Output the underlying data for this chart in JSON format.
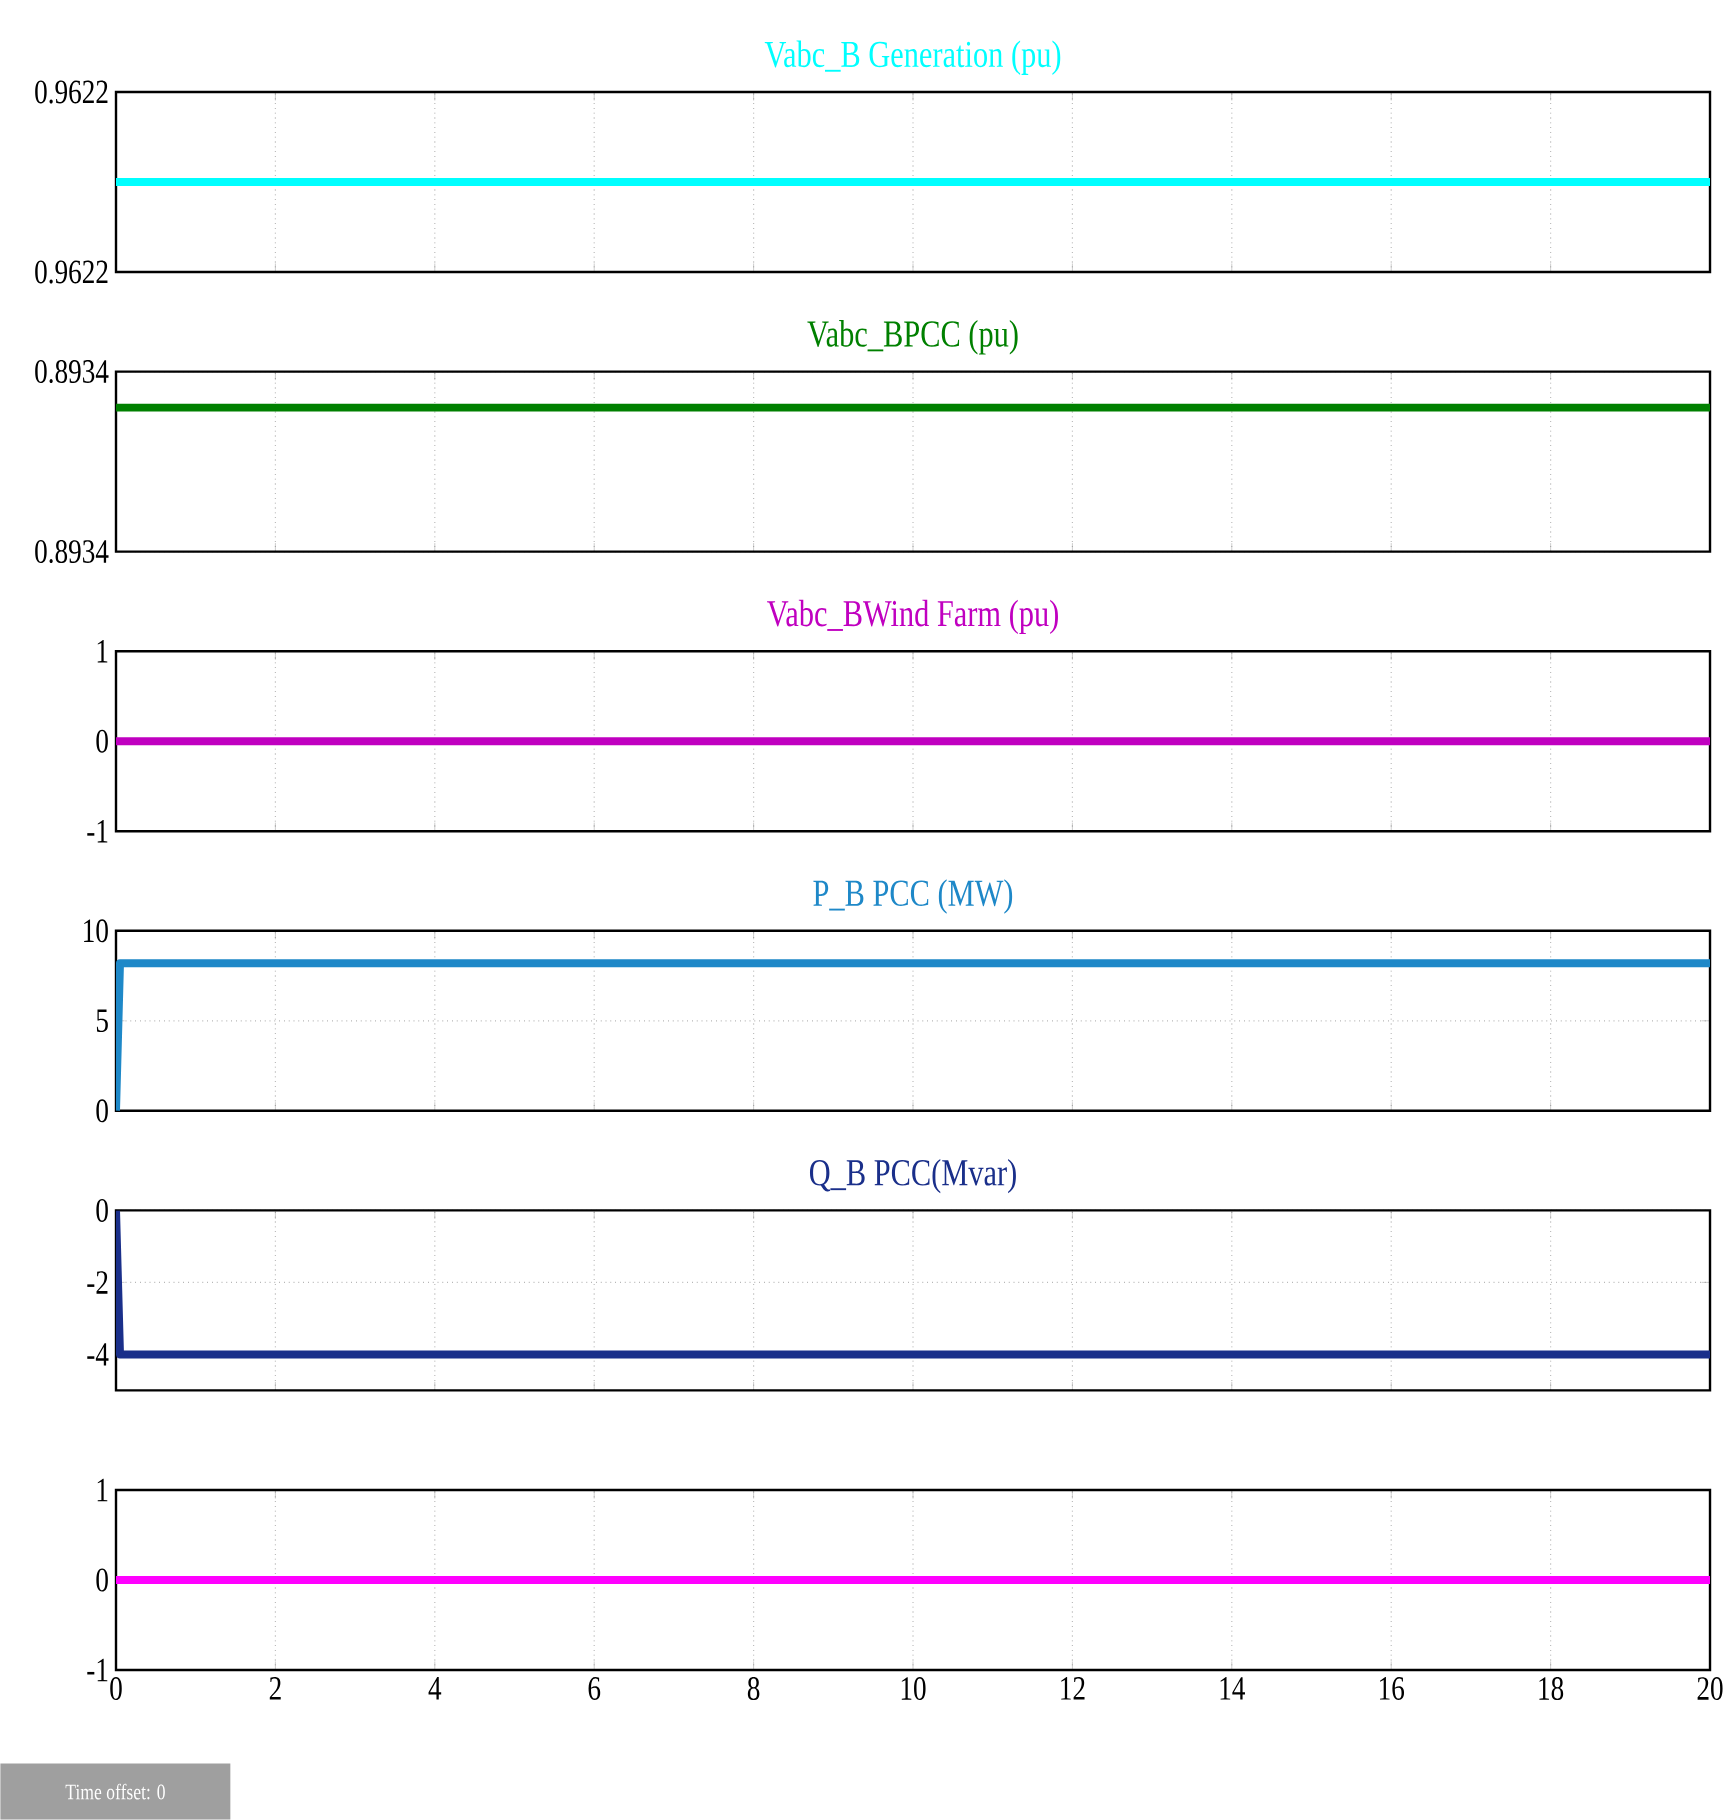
{
  "chart_data": [
    {
      "type": "line",
      "title": "Vabc_B Generation  (pu)",
      "x": [
        0,
        20
      ],
      "series": [
        {
          "color": "#00ffff",
          "values": [
            0.9622,
            0.9622
          ]
        }
      ],
      "xlim": [
        0,
        20
      ],
      "xticks": [
        0,
        2,
        4,
        6,
        8,
        10,
        12,
        14,
        16,
        18,
        20
      ],
      "ylim": [
        0.96215,
        0.96225
      ],
      "yticks": [
        {
          "value": 0.96215,
          "label": "0.9622"
        },
        {
          "value": 0.96225,
          "label": "0.9622"
        }
      ],
      "grid": true,
      "tick_labels": "y"
    },
    {
      "type": "line",
      "title": "Vabc_BPCC  (pu)",
      "x": [
        0,
        20
      ],
      "series": [
        {
          "color": "#008000",
          "values": [
            0.89343,
            0.89343
          ]
        }
      ],
      "xlim": [
        0,
        20
      ],
      "xticks": [
        0,
        2,
        4,
        6,
        8,
        10,
        12,
        14,
        16,
        18,
        20
      ],
      "ylim": [
        0.89335,
        0.89345
      ],
      "yticks": [
        {
          "value": 0.89335,
          "label": "0.8934"
        },
        {
          "value": 0.89345,
          "label": "0.8934"
        }
      ],
      "grid": true,
      "tick_labels": "y"
    },
    {
      "type": "line",
      "title": "Vabc_BWind Farm (pu)",
      "x": [
        0,
        20
      ],
      "series": [
        {
          "color": "#c000c0",
          "values": [
            0,
            0
          ]
        }
      ],
      "xlim": [
        0,
        20
      ],
      "xticks": [
        0,
        2,
        4,
        6,
        8,
        10,
        12,
        14,
        16,
        18,
        20
      ],
      "ylim": [
        -1,
        1
      ],
      "yticks": [
        -1,
        0,
        1
      ],
      "grid": true,
      "tick_labels": "y"
    },
    {
      "type": "line",
      "title": "P_B PCC (MW)",
      "x": [
        0,
        0.05,
        20
      ],
      "series": [
        {
          "color": "#1e88c8",
          "values": [
            0,
            8.2,
            8.2
          ]
        }
      ],
      "xlim": [
        0,
        20
      ],
      "xticks": [
        0,
        2,
        4,
        6,
        8,
        10,
        12,
        14,
        16,
        18,
        20
      ],
      "ylim": [
        0,
        10
      ],
      "yticks": [
        0,
        5,
        10
      ],
      "grid": true,
      "tick_labels": "y"
    },
    {
      "type": "line",
      "title": "Q_B PCC(Mvar)",
      "x": [
        0,
        0.05,
        20
      ],
      "series": [
        {
          "color": "#1a2f8a",
          "values": [
            0,
            -4,
            -4
          ]
        }
      ],
      "xlim": [
        0,
        20
      ],
      "xticks": [
        0,
        2,
        4,
        6,
        8,
        10,
        12,
        14,
        16,
        18,
        20
      ],
      "ylim": [
        -5,
        0
      ],
      "yticks": [
        -4,
        -2,
        0
      ],
      "grid": true,
      "tick_labels": "y"
    },
    {
      "type": "line",
      "x": [
        0,
        20
      ],
      "series": [
        {
          "color": "#ff00ff",
          "values": [
            0,
            0
          ]
        }
      ],
      "xlim": [
        0,
        20
      ],
      "xticks": [
        0,
        2,
        4,
        6,
        8,
        10,
        12,
        14,
        16,
        18,
        20
      ],
      "ylim": [
        -1,
        1
      ],
      "yticks": [
        -1,
        0,
        1
      ],
      "grid": true,
      "annotations": [
        "Time offset:  0"
      ]
    }
  ]
}
